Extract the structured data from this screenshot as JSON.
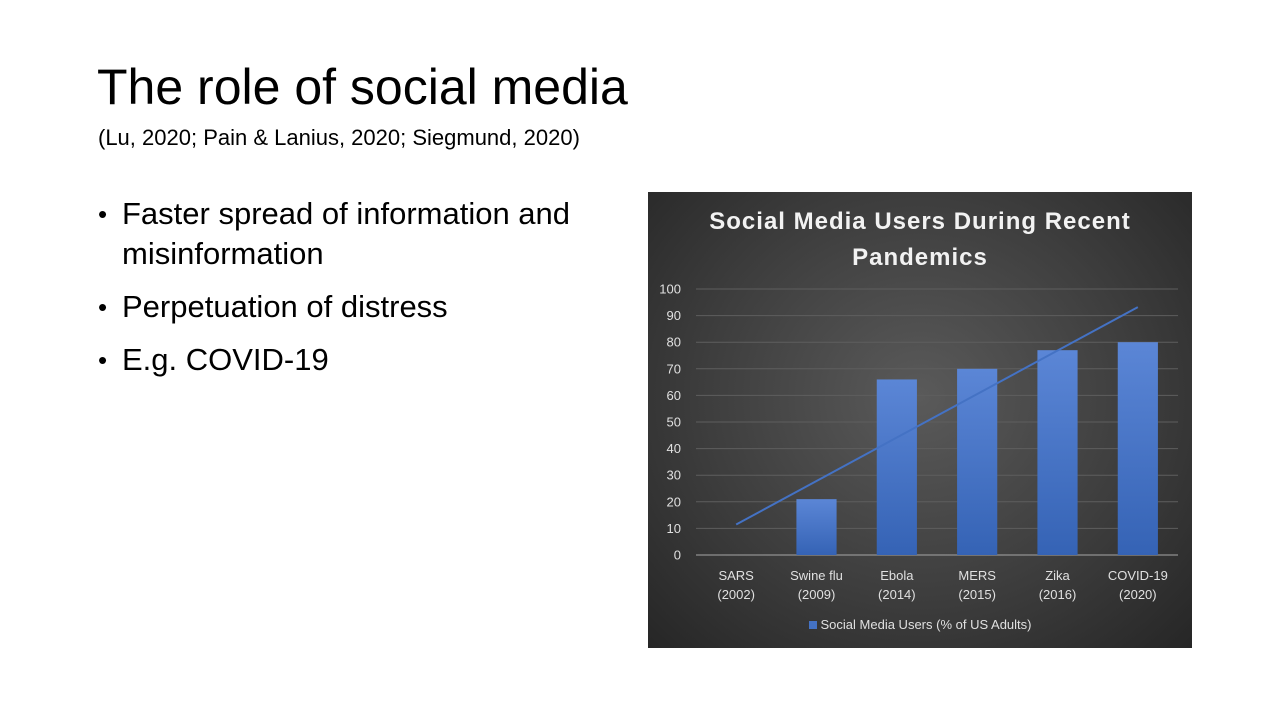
{
  "slide": {
    "title": "The role of social media",
    "subtitle": "(Lu, 2020; Pain & Lanius, 2020; Siegmund, 2020)",
    "bullets": [
      "Faster spread of information and misinformation",
      "Perpetuation of distress",
      "E.g. COVID-19"
    ]
  },
  "chart_data": {
    "type": "bar",
    "title": "Social Media Users During Recent Pandemics",
    "categories": [
      "SARS (2002)",
      "Swine flu (2009)",
      "Ebola (2014)",
      "MERS (2015)",
      "Zika (2016)",
      "COVID-19 (2020)"
    ],
    "category_lines": [
      [
        "SARS",
        "(2002)"
      ],
      [
        "Swine flu",
        "(2009)"
      ],
      [
        "Ebola",
        "(2014)"
      ],
      [
        "MERS",
        "(2015)"
      ],
      [
        "Zika",
        "(2016)"
      ],
      [
        "COVID-19",
        "(2020)"
      ]
    ],
    "series": [
      {
        "name": "Social Media Users (% of US Adults)",
        "values": [
          0,
          21,
          66,
          70,
          77,
          80
        ],
        "color": "#4472c4"
      }
    ],
    "trendline": {
      "type": "linear",
      "color": "#4472c4"
    },
    "ylim": [
      0,
      100
    ],
    "yticks": [
      0,
      10,
      20,
      30,
      40,
      50,
      60,
      70,
      80,
      90,
      100
    ],
    "grid": true,
    "legend_position": "bottom",
    "background": "#3f3f3f"
  }
}
